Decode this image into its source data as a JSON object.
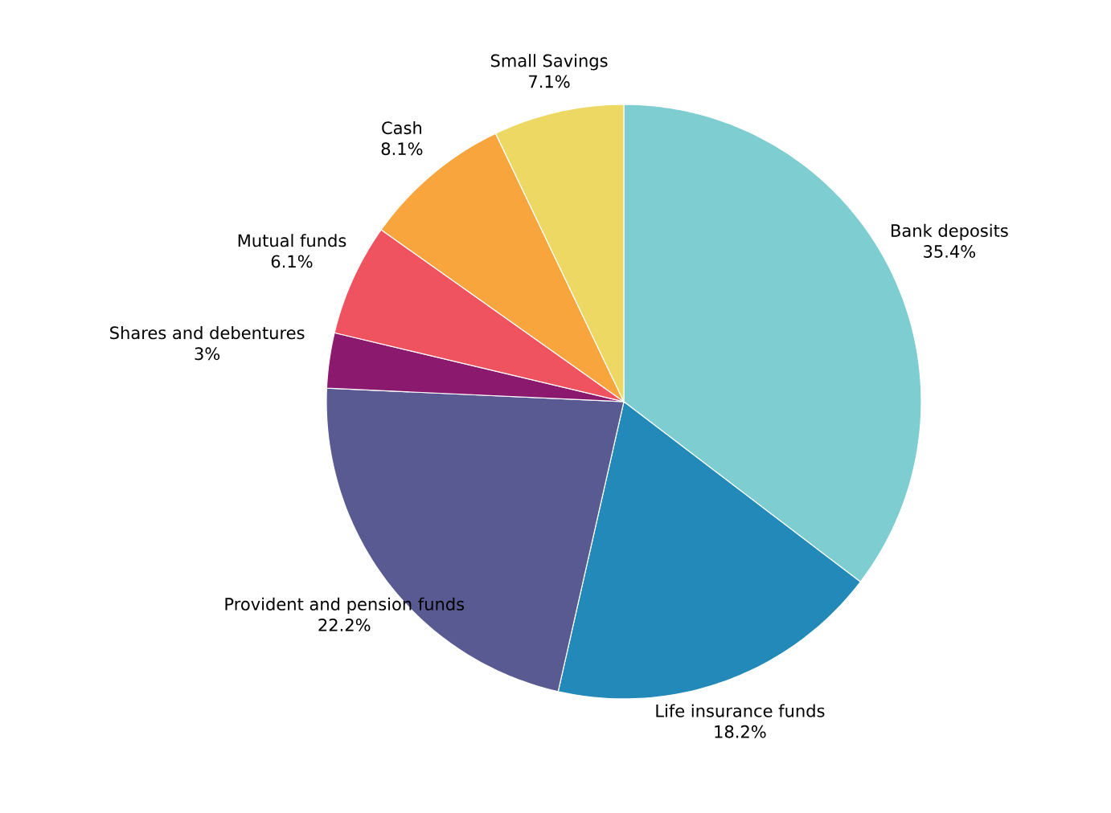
{
  "chart_data": {
    "type": "pie",
    "categories": [
      "Bank deposits",
      "Life insurance funds",
      "Provident and pension funds",
      "Shares and debentures",
      "Mutual funds",
      "Cash",
      "Small Savings"
    ],
    "values": [
      35.4,
      18.2,
      22.2,
      3,
      6.1,
      8.1,
      7.1
    ],
    "value_labels": [
      "35.4%",
      "18.2%",
      "22.2%",
      "3%",
      "6.1%",
      "8.1%",
      "7.1%"
    ],
    "colors": [
      "#7ecdd0",
      "#2389b8",
      "#5a5a92",
      "#8b1a6e",
      "#ef5360",
      "#f8a53e",
      "#ecd862"
    ]
  }
}
